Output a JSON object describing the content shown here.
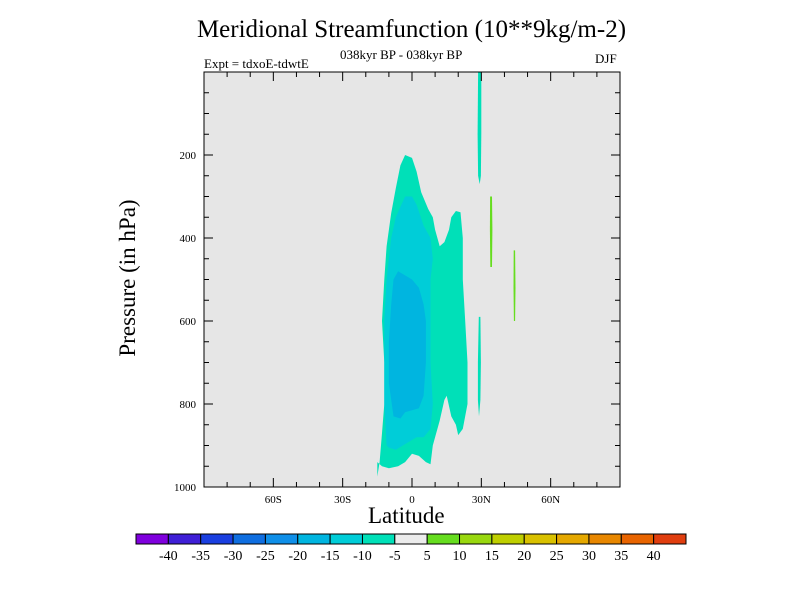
{
  "chart_data": {
    "type": "heatmap",
    "title": "Meridional Streamfunction (10**9kg/m-2)",
    "subtitle": "038kyr BP - 038kyr BP",
    "left_label": "Expt = tdxoE-tdwtE",
    "right_label": "DJF",
    "xlabel": "Latitude",
    "ylabel": "Pressure (in hPa)",
    "xlim": [
      -90,
      90
    ],
    "ylim": [
      1000,
      0
    ],
    "x_ticks": [
      {
        "value": -60,
        "label": "60S"
      },
      {
        "value": -30,
        "label": "30S"
      },
      {
        "value": 0,
        "label": "0"
      },
      {
        "value": 30,
        "label": "30N"
      },
      {
        "value": 60,
        "label": "60N"
      }
    ],
    "y_ticks": [
      {
        "value": 200,
        "label": "200"
      },
      {
        "value": 400,
        "label": "400"
      },
      {
        "value": 600,
        "label": "600"
      },
      {
        "value": 800,
        "label": "800"
      },
      {
        "value": 1000,
        "label": "1000"
      }
    ],
    "background_color": "#e6e6e6",
    "colorbar": {
      "colors": [
        "#7f00dd",
        "#3f1fd6",
        "#1a3fe0",
        "#0f6ee0",
        "#0f8fe8",
        "#00b5e0",
        "#00cdd8",
        "#00e0b8",
        "#ececec",
        "#66dd1f",
        "#99d80f",
        "#bfcf00",
        "#d9c100",
        "#e5a800",
        "#e88700",
        "#e86400",
        "#e03e0f"
      ],
      "labels": [
        "-40",
        "-35",
        "-30",
        "-25",
        "-20",
        "-15",
        "-10",
        "-5",
        "5",
        "10",
        "15",
        "20",
        "25",
        "30",
        "35",
        "40"
      ]
    },
    "regions": [
      {
        "level": -10,
        "color": "#00e0b8",
        "points": [
          [
            -15,
            975
          ],
          [
            -14,
            940
          ],
          [
            -13,
            870
          ],
          [
            -12,
            800
          ],
          [
            -12,
            700
          ],
          [
            -13,
            600
          ],
          [
            -12,
            500
          ],
          [
            -11,
            420
          ],
          [
            -9,
            340
          ],
          [
            -7,
            280
          ],
          [
            -5,
            225
          ],
          [
            -3,
            200
          ],
          [
            0,
            207
          ],
          [
            2,
            240
          ],
          [
            4,
            290
          ],
          [
            7,
            330
          ],
          [
            9,
            350
          ],
          [
            10,
            380
          ],
          [
            12,
            420
          ],
          [
            14,
            410
          ],
          [
            16,
            380
          ],
          [
            17,
            350
          ],
          [
            19,
            335
          ],
          [
            21,
            338
          ],
          [
            22,
            400
          ],
          [
            22,
            500
          ],
          [
            23,
            600
          ],
          [
            24,
            700
          ],
          [
            24,
            800
          ],
          [
            22,
            860
          ],
          [
            20,
            875
          ],
          [
            19,
            850
          ],
          [
            17,
            830
          ],
          [
            15,
            780
          ],
          [
            14,
            790
          ],
          [
            12,
            840
          ],
          [
            9,
            900
          ],
          [
            8,
            945
          ],
          [
            6,
            940
          ],
          [
            3,
            925
          ],
          [
            0,
            920
          ],
          [
            -3,
            940
          ],
          [
            -6,
            950
          ],
          [
            -10,
            955
          ],
          [
            -13,
            950
          ],
          [
            -15,
            940
          ]
        ]
      },
      {
        "level": -15,
        "color": "#00cdd8",
        "points": [
          [
            -11,
            900
          ],
          [
            -12,
            800
          ],
          [
            -12,
            700
          ],
          [
            -12,
            600
          ],
          [
            -11,
            500
          ],
          [
            -9,
            400
          ],
          [
            -7,
            350
          ],
          [
            -3,
            300
          ],
          [
            0,
            300
          ],
          [
            2,
            320
          ],
          [
            5,
            370
          ],
          [
            8,
            400
          ],
          [
            9,
            450
          ],
          [
            8,
            500
          ],
          [
            8,
            600
          ],
          [
            8,
            700
          ],
          [
            9,
            800
          ],
          [
            8,
            860
          ],
          [
            5,
            880
          ],
          [
            2,
            880
          ],
          [
            -1,
            890
          ],
          [
            -4,
            900
          ],
          [
            -7,
            910
          ],
          [
            -10,
            905
          ]
        ]
      },
      {
        "level": -20,
        "color": "#00b5e0",
        "points": [
          [
            -8,
            830
          ],
          [
            -10,
            750
          ],
          [
            -10,
            650
          ],
          [
            -9,
            560
          ],
          [
            -8,
            500
          ],
          [
            -6,
            480
          ],
          [
            -3,
            490
          ],
          [
            0,
            500
          ],
          [
            3,
            520
          ],
          [
            5,
            560
          ],
          [
            6,
            600
          ],
          [
            6,
            700
          ],
          [
            5,
            780
          ],
          [
            3,
            810
          ],
          [
            0,
            815
          ],
          [
            -3,
            820
          ],
          [
            -5,
            835
          ]
        ]
      },
      {
        "level": -10,
        "color": "#00e0b8",
        "points": [
          [
            28.6,
            0
          ],
          [
            30.0,
            0
          ],
          [
            30.0,
            150
          ],
          [
            29.8,
            250
          ],
          [
            29.3,
            270
          ],
          [
            28.6,
            250
          ],
          [
            28.4,
            150
          ]
        ]
      },
      {
        "level": -10,
        "color": "#00e0b8",
        "points": [
          [
            28.9,
            590
          ],
          [
            29.6,
            590
          ],
          [
            29.8,
            700
          ],
          [
            29.6,
            790
          ],
          [
            29.0,
            830
          ],
          [
            28.5,
            790
          ],
          [
            28.5,
            700
          ]
        ]
      },
      {
        "level": 5,
        "color": "#66dd1f",
        "points": [
          [
            33.8,
            300
          ],
          [
            34.6,
            300
          ],
          [
            34.8,
            380
          ],
          [
            34.6,
            470
          ],
          [
            33.9,
            470
          ],
          [
            33.7,
            380
          ]
        ]
      },
      {
        "level": 5,
        "color": "#66dd1f",
        "points": [
          [
            44.0,
            430
          ],
          [
            44.6,
            430
          ],
          [
            44.8,
            520
          ],
          [
            44.6,
            600
          ],
          [
            44.1,
            600
          ],
          [
            43.9,
            520
          ]
        ]
      }
    ]
  }
}
